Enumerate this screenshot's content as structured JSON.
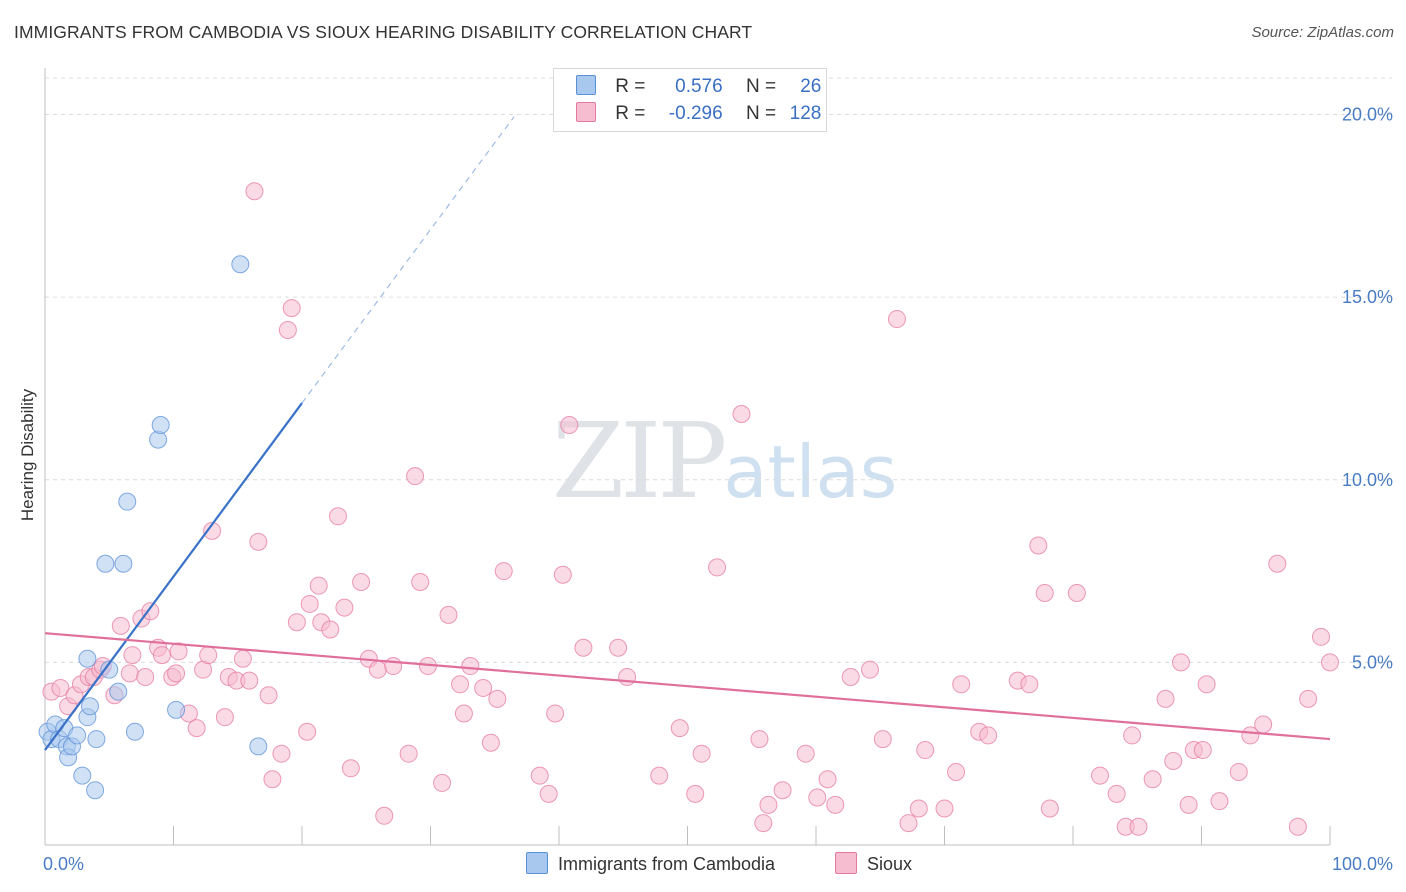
{
  "title": "IMMIGRANTS FROM CAMBODIA VS SIOUX HEARING DISABILITY CORRELATION CHART",
  "source": "Source: ZipAtlas.com",
  "watermark": {
    "zip": "ZIP",
    "atlas": "atlas"
  },
  "legend": {
    "r_label": "R =",
    "n_label": "N =",
    "rows": [
      {
        "name": "Immigrants from Cambodia",
        "r": "0.576",
        "n": "26",
        "color": "#a9c8ee",
        "border": "#5b8fd6"
      },
      {
        "name": "Sioux",
        "r": "-0.296",
        "n": "128",
        "color": "#f6bcd0",
        "border": "#e57aa0"
      }
    ]
  },
  "chart_data": {
    "type": "scatter",
    "title": "IMMIGRANTS FROM CAMBODIA VS SIOUX HEARING DISABILITY CORRELATION CHART",
    "xlabel": "",
    "ylabel": "Hearing Disability",
    "xlim": [
      0,
      100
    ],
    "ylim": [
      0,
      21
    ],
    "x_tick_labels": [
      "0.0%",
      "100.0%"
    ],
    "y_ticks": [
      5,
      10,
      15,
      20
    ],
    "y_tick_labels": [
      "5.0%",
      "10.0%",
      "15.0%",
      "20.0%"
    ],
    "grid": true,
    "series": [
      {
        "name": "Immigrants from Cambodia",
        "color": "#5b8fd6",
        "fill": "#a9c8ee",
        "trend": {
          "x0": 0,
          "y0": 2.6,
          "x1": 20,
          "y1": 12.1,
          "dashed_to_x": 36.5
        },
        "points": [
          [
            0.2,
            3.1
          ],
          [
            0.5,
            2.9
          ],
          [
            0.8,
            3.3
          ],
          [
            1.1,
            2.9
          ],
          [
            1.5,
            3.2
          ],
          [
            1.7,
            2.7
          ],
          [
            1.8,
            2.4
          ],
          [
            2.1,
            2.7
          ],
          [
            2.5,
            3.0
          ],
          [
            2.9,
            1.9
          ],
          [
            3.3,
            3.5
          ],
          [
            3.3,
            5.1
          ],
          [
            3.5,
            3.8
          ],
          [
            3.9,
            1.5
          ],
          [
            4.0,
            2.9
          ],
          [
            4.7,
            7.7
          ],
          [
            5.0,
            4.8
          ],
          [
            5.7,
            4.2
          ],
          [
            6.1,
            7.7
          ],
          [
            6.4,
            9.4
          ],
          [
            7.0,
            3.1
          ],
          [
            8.8,
            11.1
          ],
          [
            9.0,
            11.5
          ],
          [
            10.2,
            3.7
          ],
          [
            15.2,
            15.9
          ],
          [
            16.6,
            2.7
          ]
        ]
      },
      {
        "name": "Sioux",
        "color": "#e57aa0",
        "fill": "#f6bcd0",
        "trend": {
          "x0": 0,
          "y0": 5.8,
          "x1": 100,
          "y1": 2.9
        },
        "points": [
          [
            0.5,
            4.2
          ],
          [
            1.2,
            4.3
          ],
          [
            1.8,
            3.8
          ],
          [
            2.3,
            4.1
          ],
          [
            2.8,
            4.4
          ],
          [
            3.4,
            4.6
          ],
          [
            3.8,
            4.6
          ],
          [
            4.3,
            4.8
          ],
          [
            4.5,
            4.9
          ],
          [
            5.4,
            4.1
          ],
          [
            5.9,
            6.0
          ],
          [
            6.6,
            4.7
          ],
          [
            6.8,
            5.2
          ],
          [
            7.5,
            6.2
          ],
          [
            7.8,
            4.6
          ],
          [
            8.2,
            6.4
          ],
          [
            8.8,
            5.4
          ],
          [
            9.1,
            5.2
          ],
          [
            9.9,
            4.6
          ],
          [
            10.2,
            4.7
          ],
          [
            10.4,
            5.3
          ],
          [
            11.2,
            3.6
          ],
          [
            11.8,
            3.2
          ],
          [
            12.3,
            4.8
          ],
          [
            12.7,
            5.2
          ],
          [
            13.0,
            8.6
          ],
          [
            14.0,
            3.5
          ],
          [
            14.3,
            4.6
          ],
          [
            14.9,
            4.5
          ],
          [
            15.4,
            5.1
          ],
          [
            15.9,
            4.5
          ],
          [
            16.3,
            17.9
          ],
          [
            16.6,
            8.3
          ],
          [
            17.4,
            4.1
          ],
          [
            17.7,
            1.8
          ],
          [
            18.4,
            2.5
          ],
          [
            18.9,
            14.1
          ],
          [
            19.2,
            14.7
          ],
          [
            19.6,
            6.1
          ],
          [
            20.4,
            3.1
          ],
          [
            20.6,
            6.6
          ],
          [
            21.3,
            7.1
          ],
          [
            21.5,
            6.1
          ],
          [
            22.2,
            5.9
          ],
          [
            22.8,
            9.0
          ],
          [
            23.3,
            6.5
          ],
          [
            23.8,
            2.1
          ],
          [
            24.6,
            7.2
          ],
          [
            25.2,
            5.1
          ],
          [
            25.9,
            4.8
          ],
          [
            26.4,
            0.8
          ],
          [
            27.1,
            4.9
          ],
          [
            28.3,
            2.5
          ],
          [
            28.8,
            10.1
          ],
          [
            29.2,
            7.2
          ],
          [
            29.8,
            4.9
          ],
          [
            30.9,
            1.7
          ],
          [
            31.4,
            6.3
          ],
          [
            32.3,
            4.4
          ],
          [
            32.6,
            3.6
          ],
          [
            33.1,
            4.9
          ],
          [
            34.1,
            4.3
          ],
          [
            34.7,
            2.8
          ],
          [
            35.2,
            4.0
          ],
          [
            35.7,
            7.5
          ],
          [
            38.5,
            1.9
          ],
          [
            39.2,
            1.4
          ],
          [
            39.7,
            3.6
          ],
          [
            40.3,
            7.4
          ],
          [
            40.8,
            11.5
          ],
          [
            41.9,
            5.4
          ],
          [
            44.6,
            5.4
          ],
          [
            45.3,
            4.6
          ],
          [
            47.8,
            1.9
          ],
          [
            49.4,
            3.2
          ],
          [
            50.6,
            1.4
          ],
          [
            51.1,
            2.5
          ],
          [
            52.3,
            7.6
          ],
          [
            54.2,
            11.8
          ],
          [
            55.6,
            2.9
          ],
          [
            55.9,
            0.6
          ],
          [
            56.3,
            1.1
          ],
          [
            57.4,
            1.5
          ],
          [
            59.2,
            2.5
          ],
          [
            60.1,
            1.3
          ],
          [
            60.9,
            1.8
          ],
          [
            61.5,
            1.1
          ],
          [
            62.7,
            4.6
          ],
          [
            64.2,
            4.8
          ],
          [
            65.2,
            2.9
          ],
          [
            66.3,
            14.4
          ],
          [
            67.2,
            0.6
          ],
          [
            68.0,
            1.0
          ],
          [
            68.5,
            2.6
          ],
          [
            70.0,
            1.0
          ],
          [
            70.9,
            2.0
          ],
          [
            71.3,
            4.4
          ],
          [
            72.7,
            3.1
          ],
          [
            73.4,
            3.0
          ],
          [
            75.7,
            4.5
          ],
          [
            76.6,
            4.4
          ],
          [
            77.3,
            8.2
          ],
          [
            77.8,
            6.9
          ],
          [
            78.2,
            1.0
          ],
          [
            80.3,
            6.9
          ],
          [
            82.1,
            1.9
          ],
          [
            83.4,
            1.4
          ],
          [
            84.1,
            0.5
          ],
          [
            84.6,
            3.0
          ],
          [
            85.1,
            0.5
          ],
          [
            86.2,
            1.8
          ],
          [
            87.2,
            4.0
          ],
          [
            87.8,
            2.3
          ],
          [
            88.4,
            5.0
          ],
          [
            89.0,
            1.1
          ],
          [
            89.4,
            2.6
          ],
          [
            90.1,
            2.6
          ],
          [
            90.4,
            4.4
          ],
          [
            91.4,
            1.2
          ],
          [
            92.9,
            2.0
          ],
          [
            93.8,
            3.0
          ],
          [
            94.8,
            3.3
          ],
          [
            95.9,
            7.7
          ],
          [
            97.5,
            0.5
          ],
          [
            98.3,
            4.0
          ],
          [
            99.3,
            5.7
          ],
          [
            100.0,
            5.0
          ]
        ]
      }
    ]
  }
}
